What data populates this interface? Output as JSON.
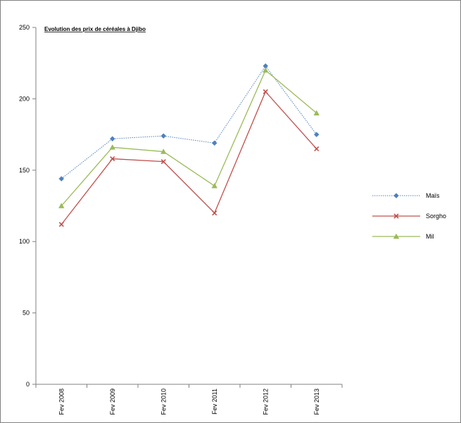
{
  "chart_data": {
    "type": "line",
    "title": "Evolution des prix de céréales à Djibo",
    "xlabel": "",
    "ylabel": "",
    "categories": [
      "Fev 2008",
      "Fev 2009",
      "Fev 2010",
      "Fev 2011",
      "Fev 2012",
      "Fev 2013"
    ],
    "ylim": [
      0,
      250
    ],
    "yticks": [
      0,
      50,
      100,
      150,
      200,
      250
    ],
    "grid": false,
    "legend_position": "right",
    "series": [
      {
        "name": "Maïs",
        "values": [
          144,
          172,
          174,
          169,
          223,
          175
        ],
        "color": "#4F81BD",
        "line_style": "dotted",
        "marker": "diamond"
      },
      {
        "name": "Sorgho",
        "values": [
          112,
          158,
          156,
          120,
          205,
          165
        ],
        "color": "#C0504D",
        "line_style": "solid",
        "marker": "x"
      },
      {
        "name": "Mil",
        "values": [
          125,
          166,
          163,
          139,
          220,
          190
        ],
        "color": "#9BBB59",
        "line_style": "solid",
        "marker": "triangle"
      }
    ]
  }
}
